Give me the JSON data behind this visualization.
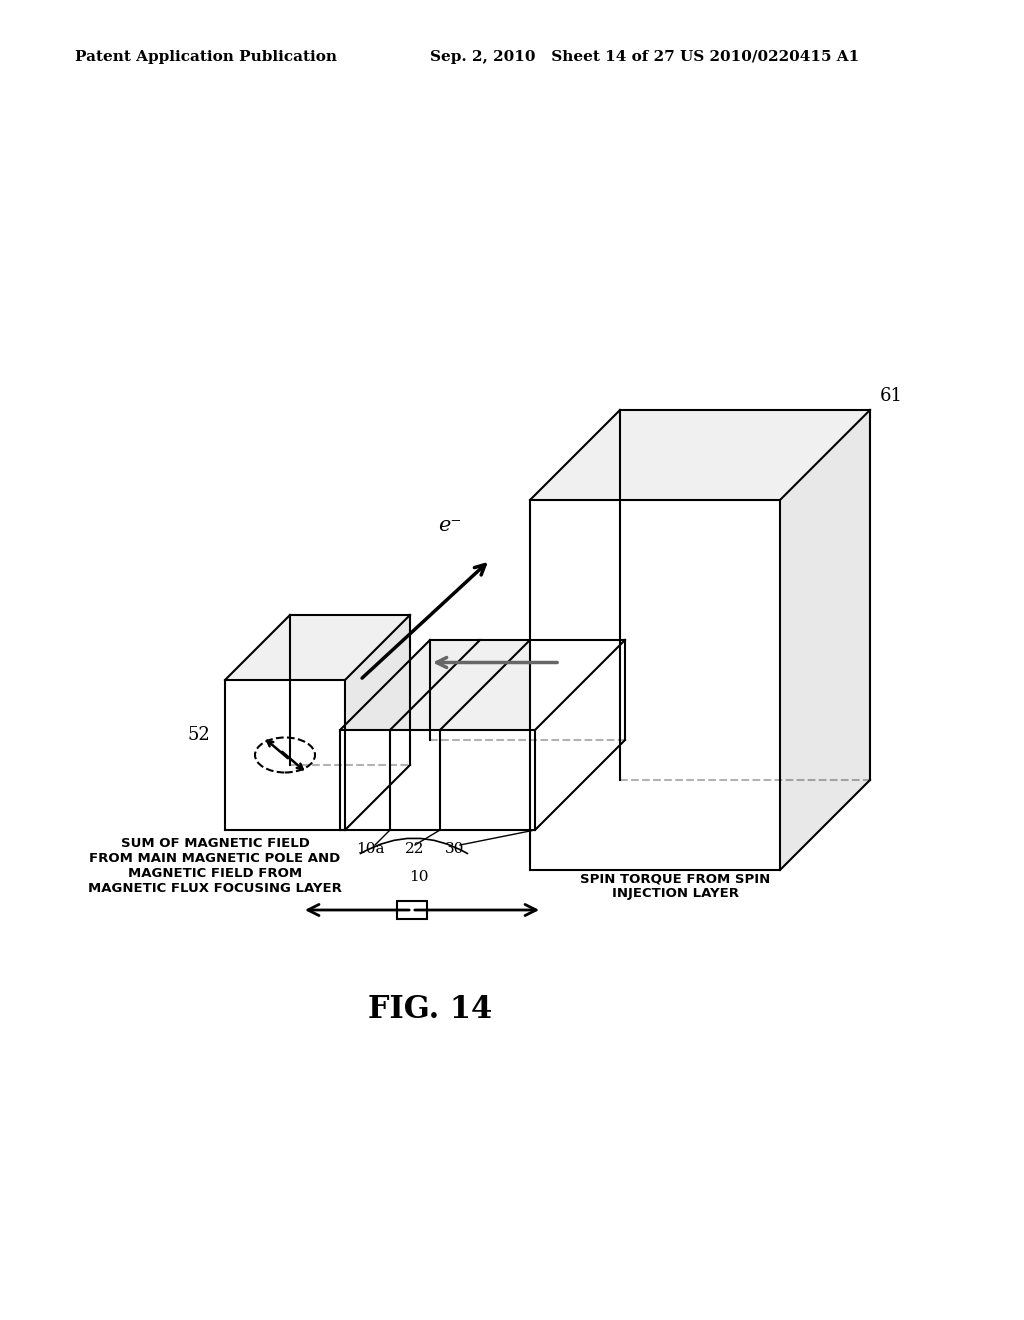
{
  "bg_color": "#ffffff",
  "line_color": "#000000",
  "gray_color": "#888888",
  "header_left": "Patent Application Publication",
  "header_mid": "Sep. 2, 2010   Sheet 14 of 27",
  "header_right": "US 2010/0220415 A1",
  "fig_label": "FIG. 14",
  "label_61": "61",
  "label_52": "52",
  "label_10a": "10a",
  "label_22": "22",
  "label_30": "30",
  "label_10": "10",
  "label_eminus": "e⁻",
  "label_left_arrow": "SUM OF MAGNETIC FIELD\nFROM MAIN MAGNETIC POLE AND\nMAGNETIC FIELD FROM\nMAGNETIC FLUX FOCUSING LAYER",
  "label_right_arrow": "SPIN TORQUE FROM SPIN\nINJECTION LAYER"
}
